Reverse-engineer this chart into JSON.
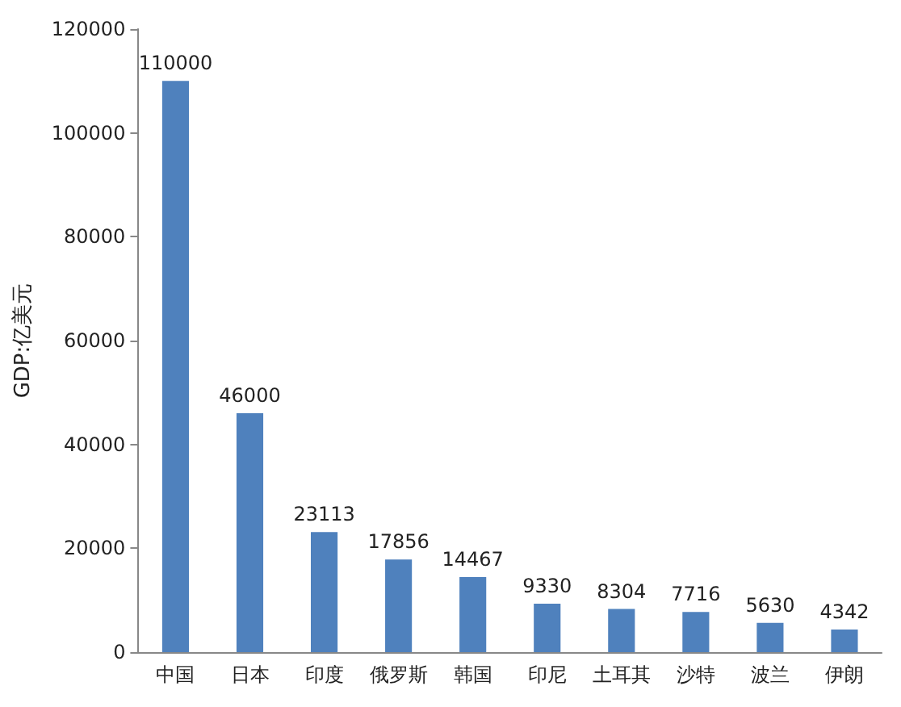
{
  "chart_data": {
    "type": "bar",
    "ylabel": "GDP:亿美元",
    "categories": [
      "中国",
      "日本",
      "印度",
      "俄罗斯",
      "韩国",
      "印尼",
      "土耳其",
      "沙特",
      "波兰",
      "伊朗"
    ],
    "values": [
      110000,
      46000,
      23113,
      17856,
      14467,
      9330,
      8304,
      7716,
      5630,
      4342
    ],
    "color": "#4f81bd",
    "ylim": [
      0,
      120000
    ],
    "yticks": [
      0,
      20000,
      40000,
      60000,
      80000,
      100000,
      120000
    ],
    "grid": false,
    "data_labels": true
  }
}
